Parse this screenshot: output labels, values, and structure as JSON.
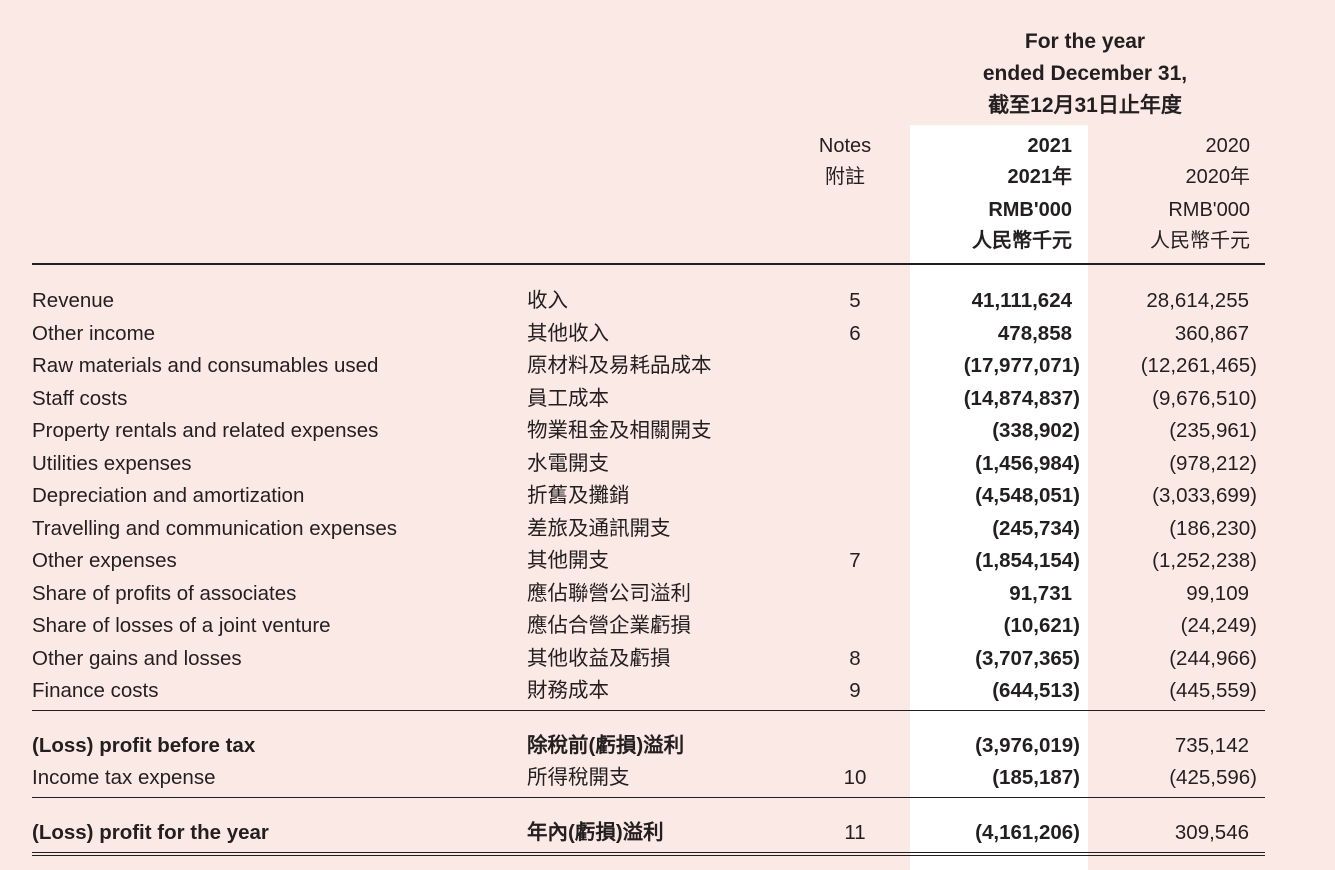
{
  "header": {
    "period_line1": "For the year",
    "period_line2": "ended December 31,",
    "period_line3": "截至12月31日止年度",
    "notes_en": "Notes",
    "notes_zh": "附註",
    "y2021_a": "2021",
    "y2021_b": "2021年",
    "y2021_c": "RMB'000",
    "y2021_d": "人民幣千元",
    "y2020_a": "2020",
    "y2020_b": "2020年",
    "y2020_c": "RMB'000",
    "y2020_d": "人民幣千元"
  },
  "rows": [
    {
      "en": "Revenue",
      "zh": "收入",
      "note": "5",
      "v2021": "41,111,624",
      "v2020": "28,614,255"
    },
    {
      "en": "Other income",
      "zh": "其他收入",
      "note": "6",
      "v2021": "478,858",
      "v2020": "360,867"
    },
    {
      "en": "Raw materials and consumables used",
      "zh": "原材料及易耗品成本",
      "note": "",
      "v2021": "(17,977,071)",
      "v2020": "(12,261,465)"
    },
    {
      "en": "Staff costs",
      "zh": "員工成本",
      "note": "",
      "v2021": "(14,874,837)",
      "v2020": "(9,676,510)"
    },
    {
      "en": "Property rentals and related expenses",
      "zh": "物業租金及相關開支",
      "note": "",
      "v2021": "(338,902)",
      "v2020": "(235,961)"
    },
    {
      "en": "Utilities expenses",
      "zh": "水電開支",
      "note": "",
      "v2021": "(1,456,984)",
      "v2020": "(978,212)"
    },
    {
      "en": "Depreciation and amortization",
      "zh": "折舊及攤銷",
      "note": "",
      "v2021": "(4,548,051)",
      "v2020": "(3,033,699)"
    },
    {
      "en": "Travelling and communication expenses",
      "zh": "差旅及通訊開支",
      "note": "",
      "v2021": "(245,734)",
      "v2020": "(186,230)"
    },
    {
      "en": "Other expenses",
      "zh": "其他開支",
      "note": "7",
      "v2021": "(1,854,154)",
      "v2020": "(1,252,238)"
    },
    {
      "en": "Share of profits of associates",
      "zh": "應佔聯營公司溢利",
      "note": "",
      "v2021": "91,731",
      "v2020": "99,109"
    },
    {
      "en": "Share of losses of a joint venture",
      "zh": "應佔合營企業虧損",
      "note": "",
      "v2021": "(10,621)",
      "v2020": "(24,249)"
    },
    {
      "en": "Other gains and losses",
      "zh": "其他收益及虧損",
      "note": "8",
      "v2021": "(3,707,365)",
      "v2020": "(244,966)"
    },
    {
      "en": "Finance costs",
      "zh": "財務成本",
      "note": "9",
      "v2021": "(644,513)",
      "v2020": "(445,559)"
    }
  ],
  "pbt": {
    "en": "(Loss) profit before tax",
    "zh": "除稅前(虧損)溢利",
    "note": "",
    "v2021": "(3,976,019)",
    "v2020": "735,142"
  },
  "tax": {
    "en": "Income tax expense",
    "zh": "所得稅開支",
    "note": "10",
    "v2021": "(185,187)",
    "v2020": "(425,596)"
  },
  "pfy": {
    "en": "(Loss) profit for the year",
    "zh": "年內(虧損)溢利",
    "note": "11",
    "v2021": "(4,161,206)",
    "v2020": "309,546"
  }
}
